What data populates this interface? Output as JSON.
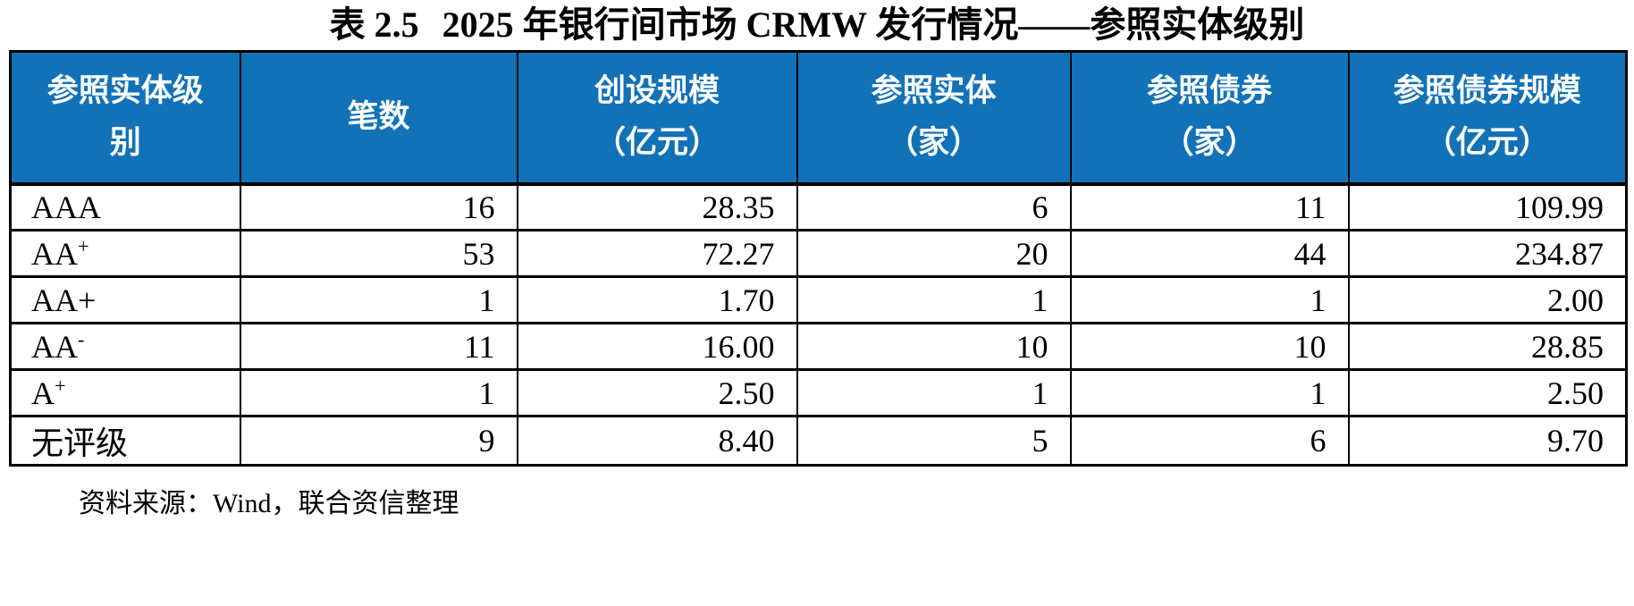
{
  "title": {
    "prefix": "表 2.5",
    "text": "2025 年银行间市场 CRMW 发行情况——参照实体级别"
  },
  "colors": {
    "header_bg": "#1272B8",
    "header_text": "#FFFFFF",
    "body_text": "#000000",
    "border": "#000000",
    "page_bg": "#FFFFFF"
  },
  "table": {
    "columns": [
      {
        "line1": "参照实体级别",
        "line2": ""
      },
      {
        "line1": "笔数",
        "line2": ""
      },
      {
        "line1": "创设规模",
        "line2": "（亿元）"
      },
      {
        "line1": "参照实体",
        "line2": "（家）"
      },
      {
        "line1": "参照债券",
        "line2": "（家）"
      },
      {
        "line1": "参照债券规模",
        "line2": "（亿元）"
      }
    ],
    "rows": [
      {
        "rating_base": "AAA",
        "rating_sup": "",
        "deals": "16",
        "issuance_scale": "28.35",
        "entities": "6",
        "bonds": "11",
        "bond_scale": "109.99"
      },
      {
        "rating_base": "AA",
        "rating_sup": "+",
        "deals": "53",
        "issuance_scale": "72.27",
        "entities": "20",
        "bonds": "44",
        "bond_scale": "234.87"
      },
      {
        "rating_base": "AA+",
        "rating_sup": "",
        "deals": "1",
        "issuance_scale": "1.70",
        "entities": "1",
        "bonds": "1",
        "bond_scale": "2.00"
      },
      {
        "rating_base": "AA",
        "rating_sup": "-",
        "deals": "11",
        "issuance_scale": "16.00",
        "entities": "10",
        "bonds": "10",
        "bond_scale": "28.85"
      },
      {
        "rating_base": "A",
        "rating_sup": "+",
        "deals": "1",
        "issuance_scale": "2.50",
        "entities": "1",
        "bonds": "1",
        "bond_scale": "2.50"
      },
      {
        "rating_base": "无评级",
        "rating_sup": "",
        "deals": "9",
        "issuance_scale": "8.40",
        "entities": "5",
        "bonds": "6",
        "bond_scale": "9.70"
      }
    ]
  },
  "source_note": "资料来源：Wind，联合资信整理"
}
